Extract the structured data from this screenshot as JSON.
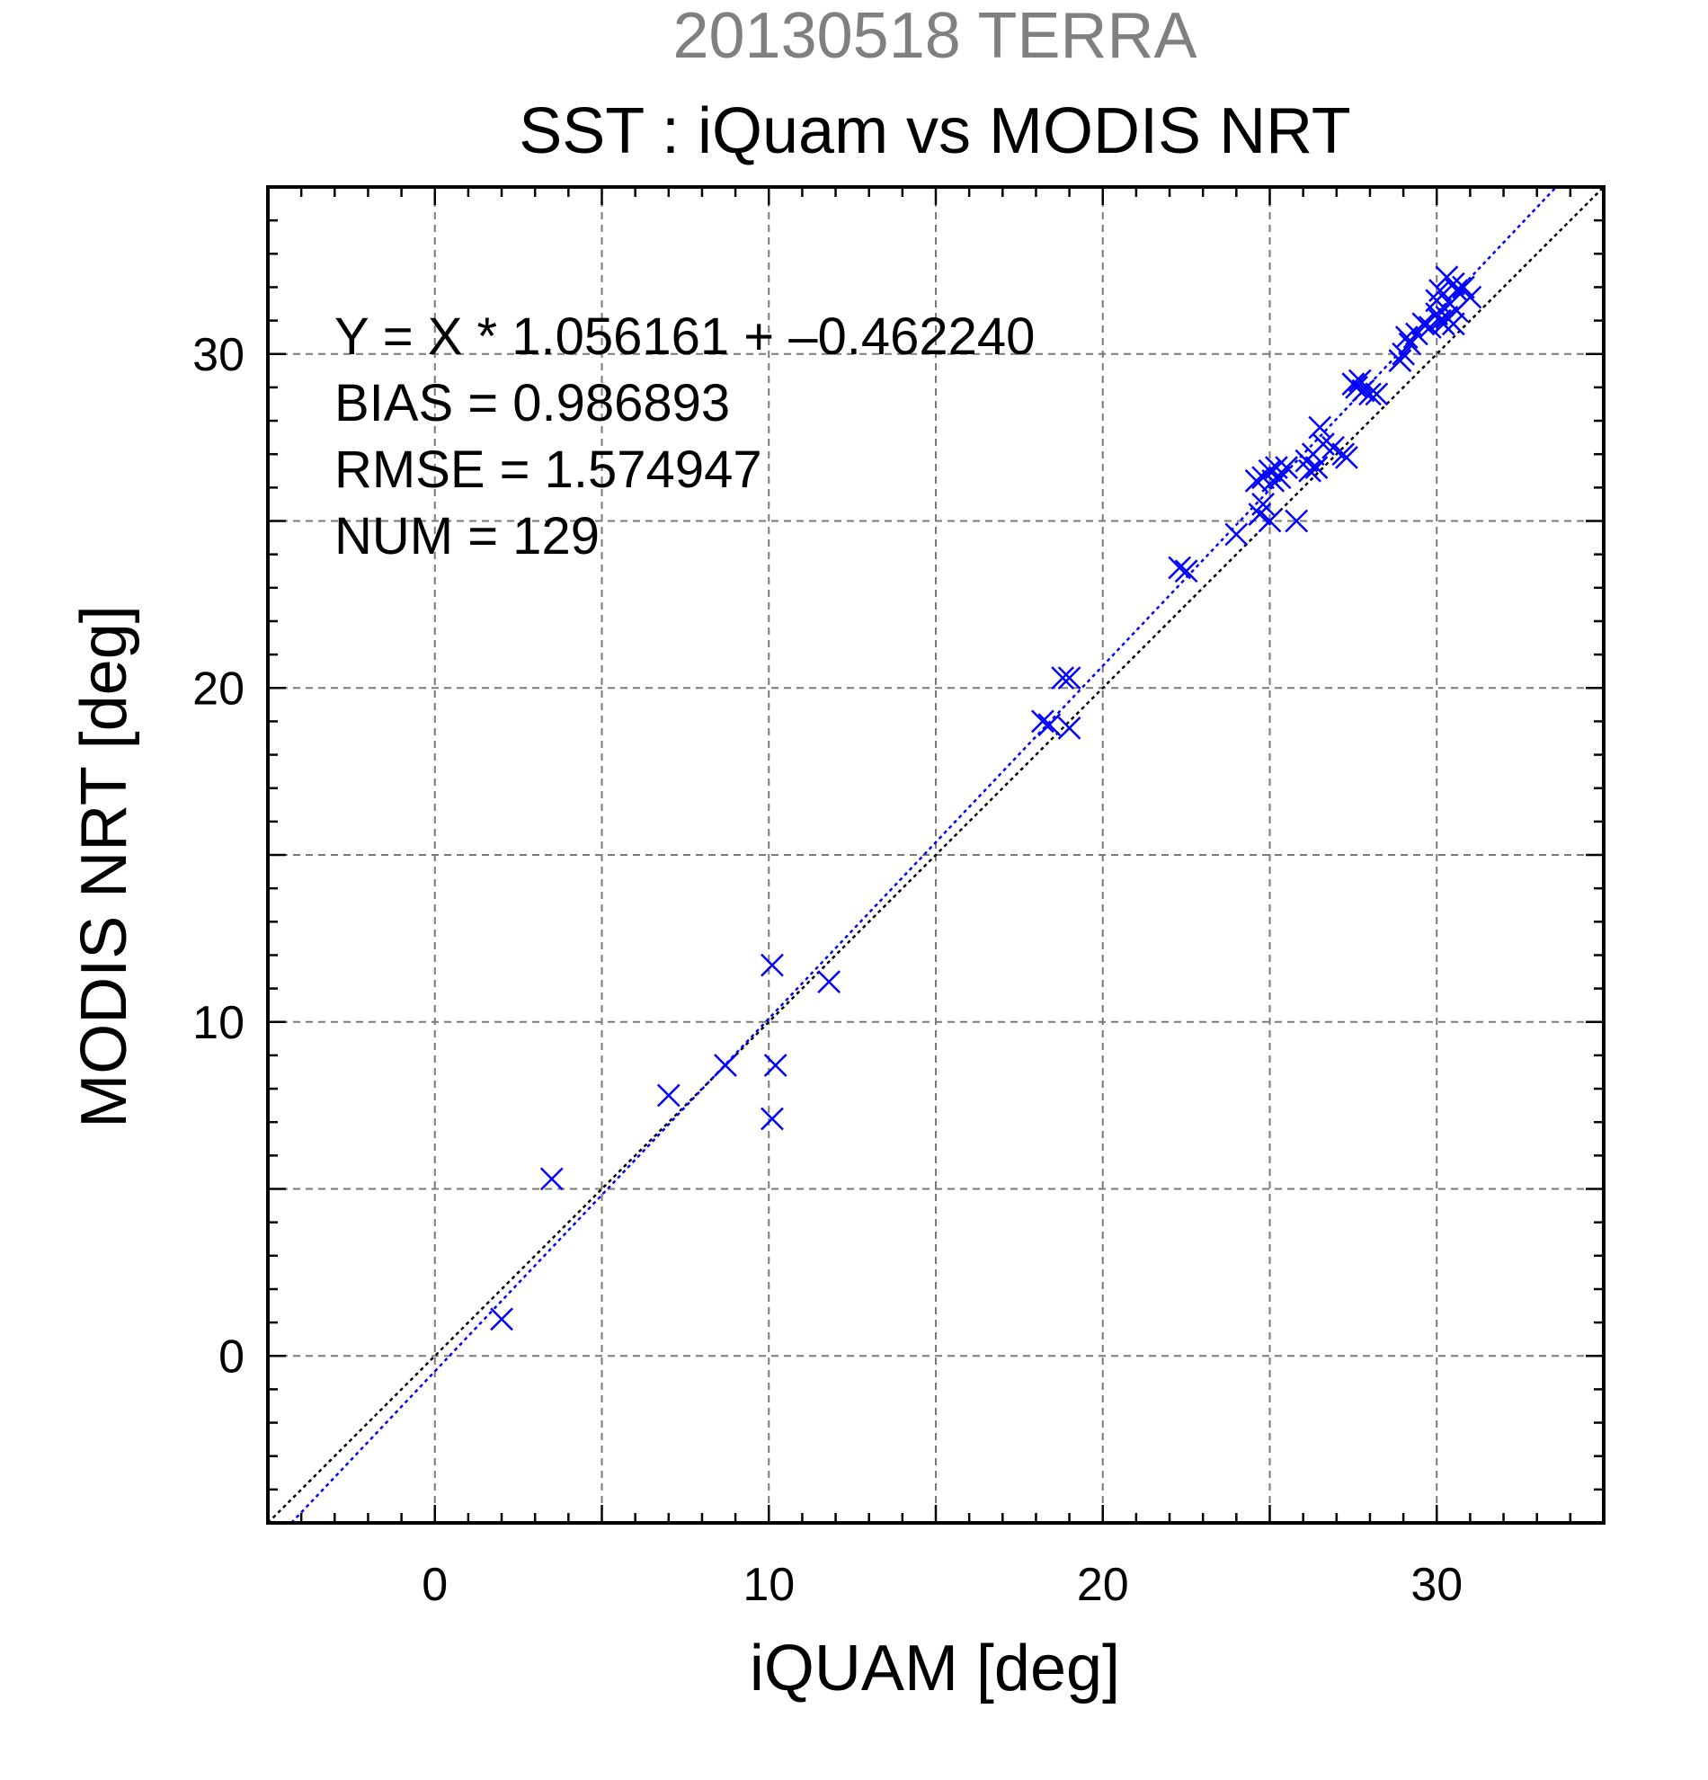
{
  "chart_data": {
    "type": "scatter",
    "title": "20130518 TERRA",
    "subtitle": "SST : iQuam vs MODIS NRT",
    "xlabel": "iQUAM [deg]",
    "ylabel": "MODIS NRT [deg]",
    "xlim": [
      -5,
      35
    ],
    "ylim": [
      -5,
      35
    ],
    "xticks": [
      0,
      10,
      20,
      30
    ],
    "yticks": [
      0,
      10,
      20,
      30
    ],
    "xtick_labels": [
      "0",
      "10",
      "20",
      "30"
    ],
    "ytick_labels": [
      "0",
      "10",
      "20",
      "30"
    ],
    "grid": true,
    "grid_step": 5,
    "minor_tick_step": 1,
    "annotations": [
      "Y = X * 1.056161 + –0.462240",
      "BIAS = 0.986893",
      "RMSE = 1.574947",
      "NUM = 129"
    ],
    "lines": [
      {
        "kind": "one-to-one",
        "slope": 1.0,
        "intercept": 0.0,
        "color": "#000000",
        "style": "dotted"
      },
      {
        "kind": "regression",
        "slope": 1.056161,
        "intercept": -0.46224,
        "color": "#0000ff",
        "style": "dotted"
      }
    ],
    "series": [
      {
        "marker": "x",
        "color": "#0000ff",
        "points": [
          [
            2.0,
            1.1
          ],
          [
            3.5,
            5.3
          ],
          [
            7.0,
            7.8
          ],
          [
            8.7,
            8.7
          ],
          [
            10.1,
            11.7
          ],
          [
            10.2,
            8.7
          ],
          [
            10.1,
            7.1
          ],
          [
            11.8,
            11.2
          ],
          [
            18.2,
            19.0
          ],
          [
            18.4,
            18.9
          ],
          [
            18.8,
            20.3
          ],
          [
            19.0,
            20.3
          ],
          [
            19.0,
            18.8
          ],
          [
            22.3,
            23.6
          ],
          [
            22.5,
            23.5
          ],
          [
            24.0,
            24.6
          ],
          [
            24.6,
            26.2
          ],
          [
            24.8,
            26.3
          ],
          [
            24.7,
            25.2
          ],
          [
            24.8,
            25.5
          ],
          [
            25.0,
            25.0
          ],
          [
            25.0,
            26.5
          ],
          [
            25.1,
            26.2
          ],
          [
            25.3,
            26.3
          ],
          [
            25.2,
            26.6
          ],
          [
            25.5,
            26.6
          ],
          [
            25.8,
            25.0
          ],
          [
            26.1,
            26.8
          ],
          [
            26.2,
            26.5
          ],
          [
            26.3,
            27.0
          ],
          [
            26.4,
            26.6
          ],
          [
            26.5,
            27.8
          ],
          [
            26.6,
            27.3
          ],
          [
            26.9,
            27.2
          ],
          [
            27.2,
            27.0
          ],
          [
            27.3,
            26.9
          ],
          [
            27.5,
            29.1
          ],
          [
            27.6,
            29.0
          ],
          [
            27.7,
            29.2
          ],
          [
            27.8,
            28.9
          ],
          [
            28.0,
            28.8
          ],
          [
            28.2,
            28.8
          ],
          [
            28.9,
            29.8
          ],
          [
            29.1,
            30.5
          ],
          [
            29.2,
            30.3
          ],
          [
            29.0,
            30.0
          ],
          [
            29.4,
            30.6
          ],
          [
            29.6,
            30.9
          ],
          [
            29.8,
            30.8
          ],
          [
            30.0,
            31.2
          ],
          [
            30.1,
            31.0
          ],
          [
            30.0,
            31.6
          ],
          [
            30.1,
            31.9
          ],
          [
            30.3,
            32.3
          ],
          [
            30.4,
            31.5
          ],
          [
            30.2,
            30.9
          ],
          [
            30.5,
            32.1
          ],
          [
            30.5,
            30.9
          ],
          [
            30.6,
            31.9
          ],
          [
            30.8,
            32.0
          ],
          [
            31.0,
            31.7
          ],
          [
            30.6,
            31.3
          ],
          [
            30.3,
            31.1
          ]
        ]
      }
    ]
  }
}
